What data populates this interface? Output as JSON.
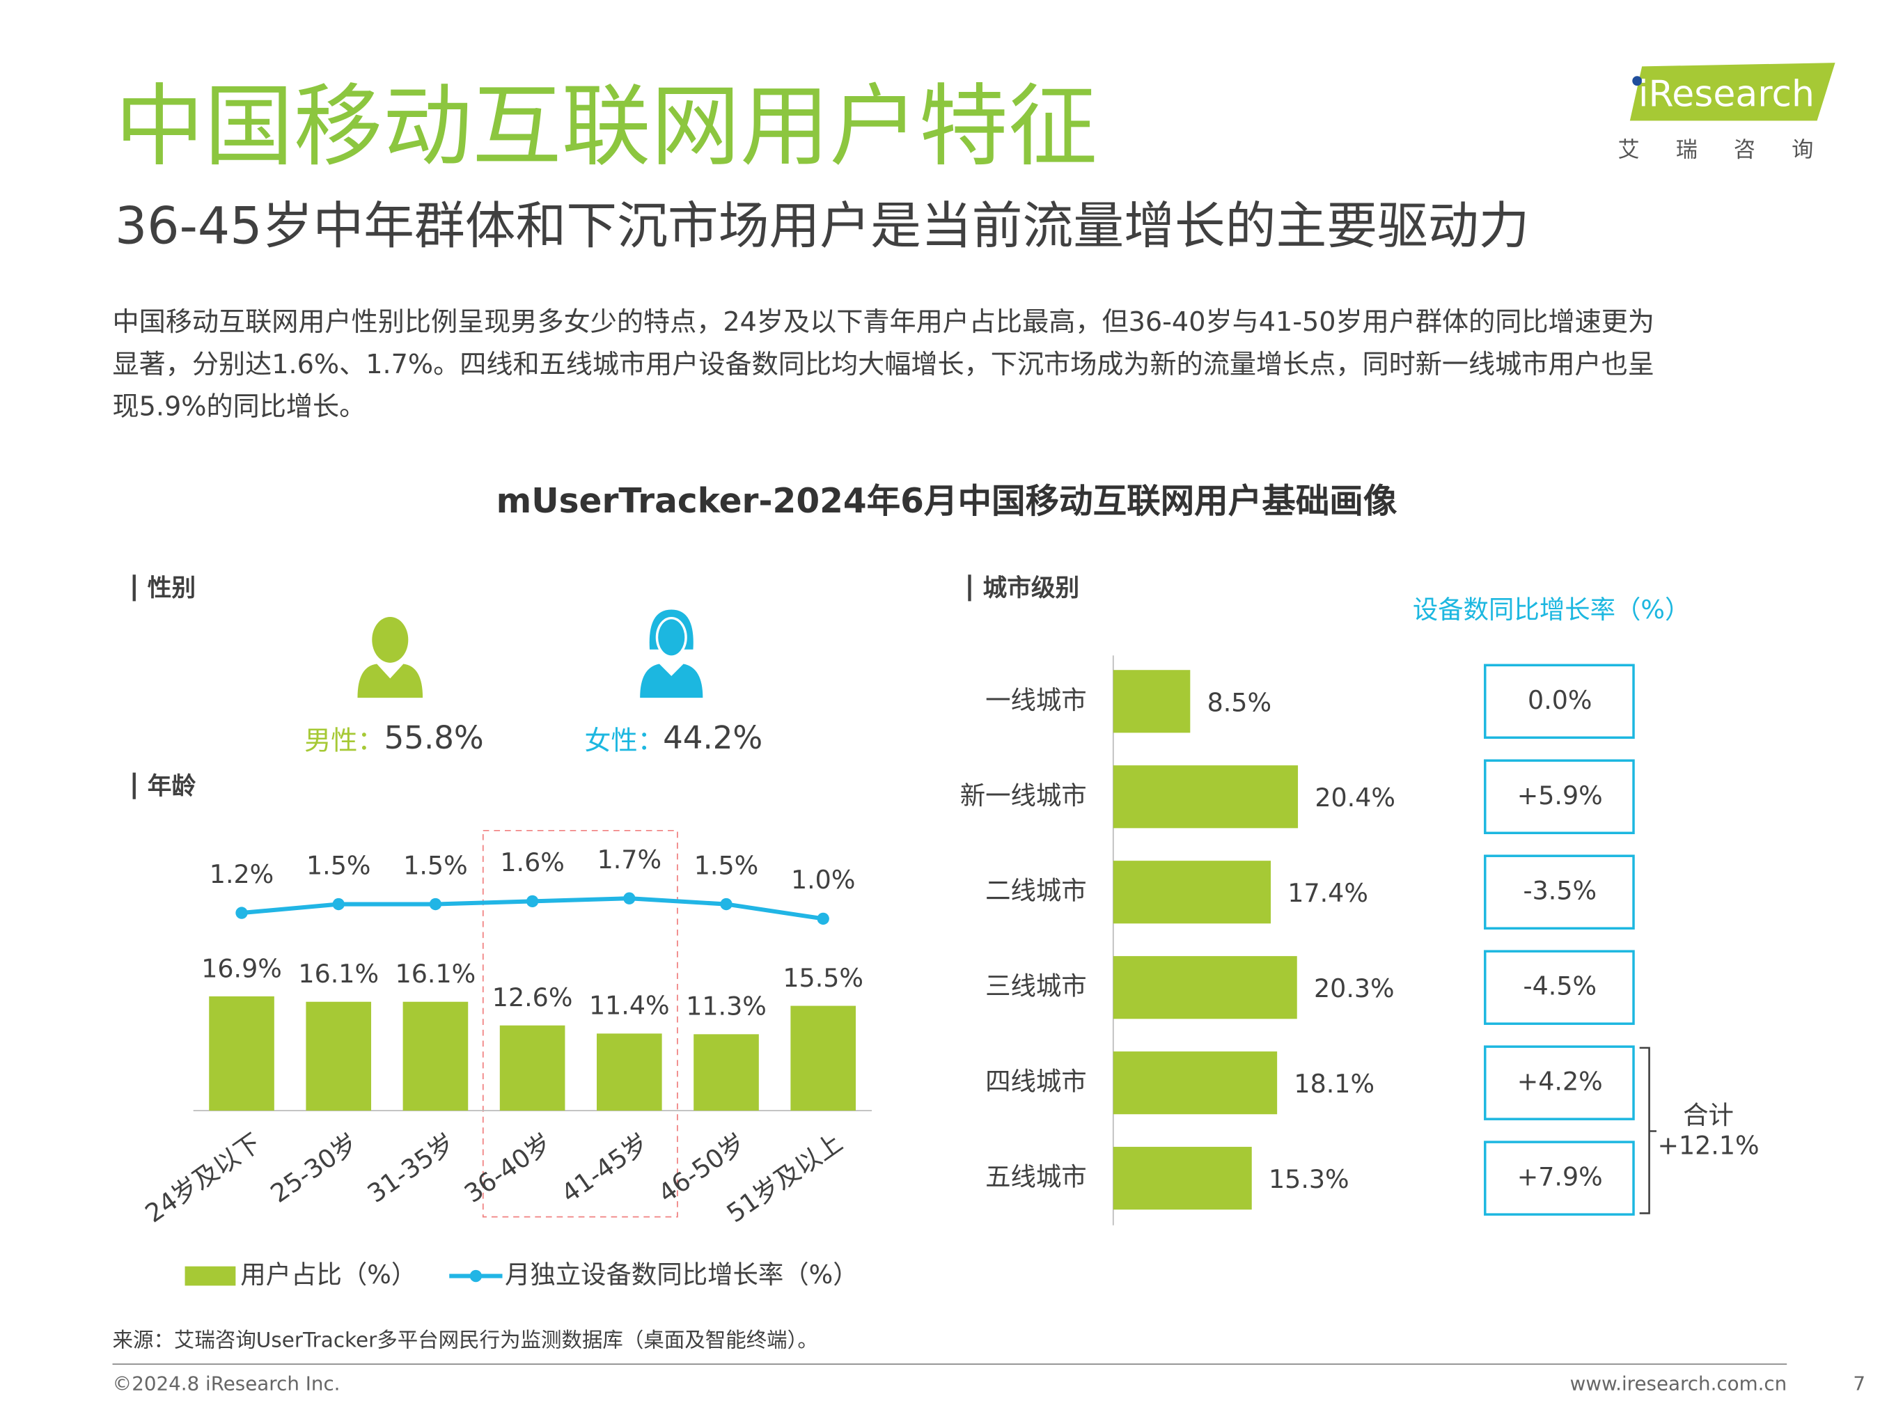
{
  "header": {
    "title": "中国移动互联网用户特征",
    "subtitle": "36-45岁中年群体和下沉市场用户是当前流量增长的主要驱动力",
    "logo": "iResearch",
    "logo_sub": "艾瑞咨询"
  },
  "description": [
    "中国移动互联网用户性别比例呈现男多女少的特点，24岁及以下青年用户占比最高，但36-40岁与41-50岁用户群体的同比增速更为",
    "显著，分别达1.6%、1.7%。四线和五线城市用户设备数同比均大幅增长，下沉市场成为新的流量增长点，同时新一线城市用户也呈",
    "现5.9%的同比增长。"
  ],
  "figure_title": "mUserTracker-2024年6月中国移动互联网用户基础画像",
  "chart_data": [
    {
      "type": "pictogram",
      "title": "性别",
      "categories": [
        "男性：",
        "女性："
      ],
      "values": [
        55.8,
        44.2
      ],
      "value_labels": [
        "55.8%",
        "44.2%"
      ],
      "colors": [
        "#a6c935",
        "#1cb7e0"
      ]
    },
    {
      "type": "bar-line",
      "title": "年龄",
      "categories": [
        "24岁及以下",
        "25-30岁",
        "31-35岁",
        "36-40岁",
        "41-45岁",
        "46-50岁",
        "51岁及以上"
      ],
      "ylim": [
        0,
        40
      ],
      "y2lim": [
        -5.6,
        3.7
      ],
      "series": [
        {
          "name": "用户占比（%）",
          "type": "bar",
          "color": "#a6c935",
          "values": [
            16.9,
            16.1,
            16.1,
            12.6,
            11.4,
            11.3,
            15.5
          ],
          "value_labels": [
            "16.9%",
            "16.1%",
            "16.1%",
            "12.6%",
            "11.4%",
            "11.3%",
            "15.5%"
          ]
        },
        {
          "name": "月独立设备数同比增长率（%）",
          "type": "line",
          "axis": "y2",
          "color": "#21b5e5",
          "values": [
            1.2,
            1.5,
            1.5,
            1.6,
            1.7,
            1.5,
            1.0
          ],
          "value_labels": [
            "1.2%",
            "1.5%",
            "1.5%",
            "1.6%",
            "1.7%",
            "1.5%",
            "1.0%"
          ]
        }
      ]
    },
    {
      "type": "hbar",
      "title": "城市级别",
      "categories": [
        "一线城市",
        "新一线城市",
        "二线城市",
        "三线城市",
        "四线城市",
        "五线城市"
      ],
      "xlim": [
        0,
        40
      ],
      "color": "#a6c935",
      "values": [
        8.5,
        20.4,
        17.4,
        20.3,
        18.1,
        15.3
      ],
      "value_labels": [
        "8.5%",
        "20.4%",
        "17.4%",
        "20.3%",
        "18.1%",
        "15.3%"
      ],
      "growth": {
        "name": "设备数同比增长率（%）",
        "color": "#1cb7e0",
        "values": [
          0.0,
          5.9,
          -3.5,
          -4.5,
          4.2,
          7.9
        ],
        "value_labels": [
          "0.0%",
          "+5.9%",
          "-3.5%",
          "-4.5%",
          "+4.2%",
          "+7.9%"
        ]
      },
      "total": {
        "label": "合计",
        "value": 12.1,
        "value_label": "+12.1%"
      }
    }
  ],
  "footer": {
    "source": "来源：艾瑞咨询UserTracker多平台网民行为监测数据库（桌面及智能终端）。",
    "copyright": "©2024.8 iResearch Inc.",
    "url": "www.iresearch.com.cn",
    "page": "7"
  }
}
